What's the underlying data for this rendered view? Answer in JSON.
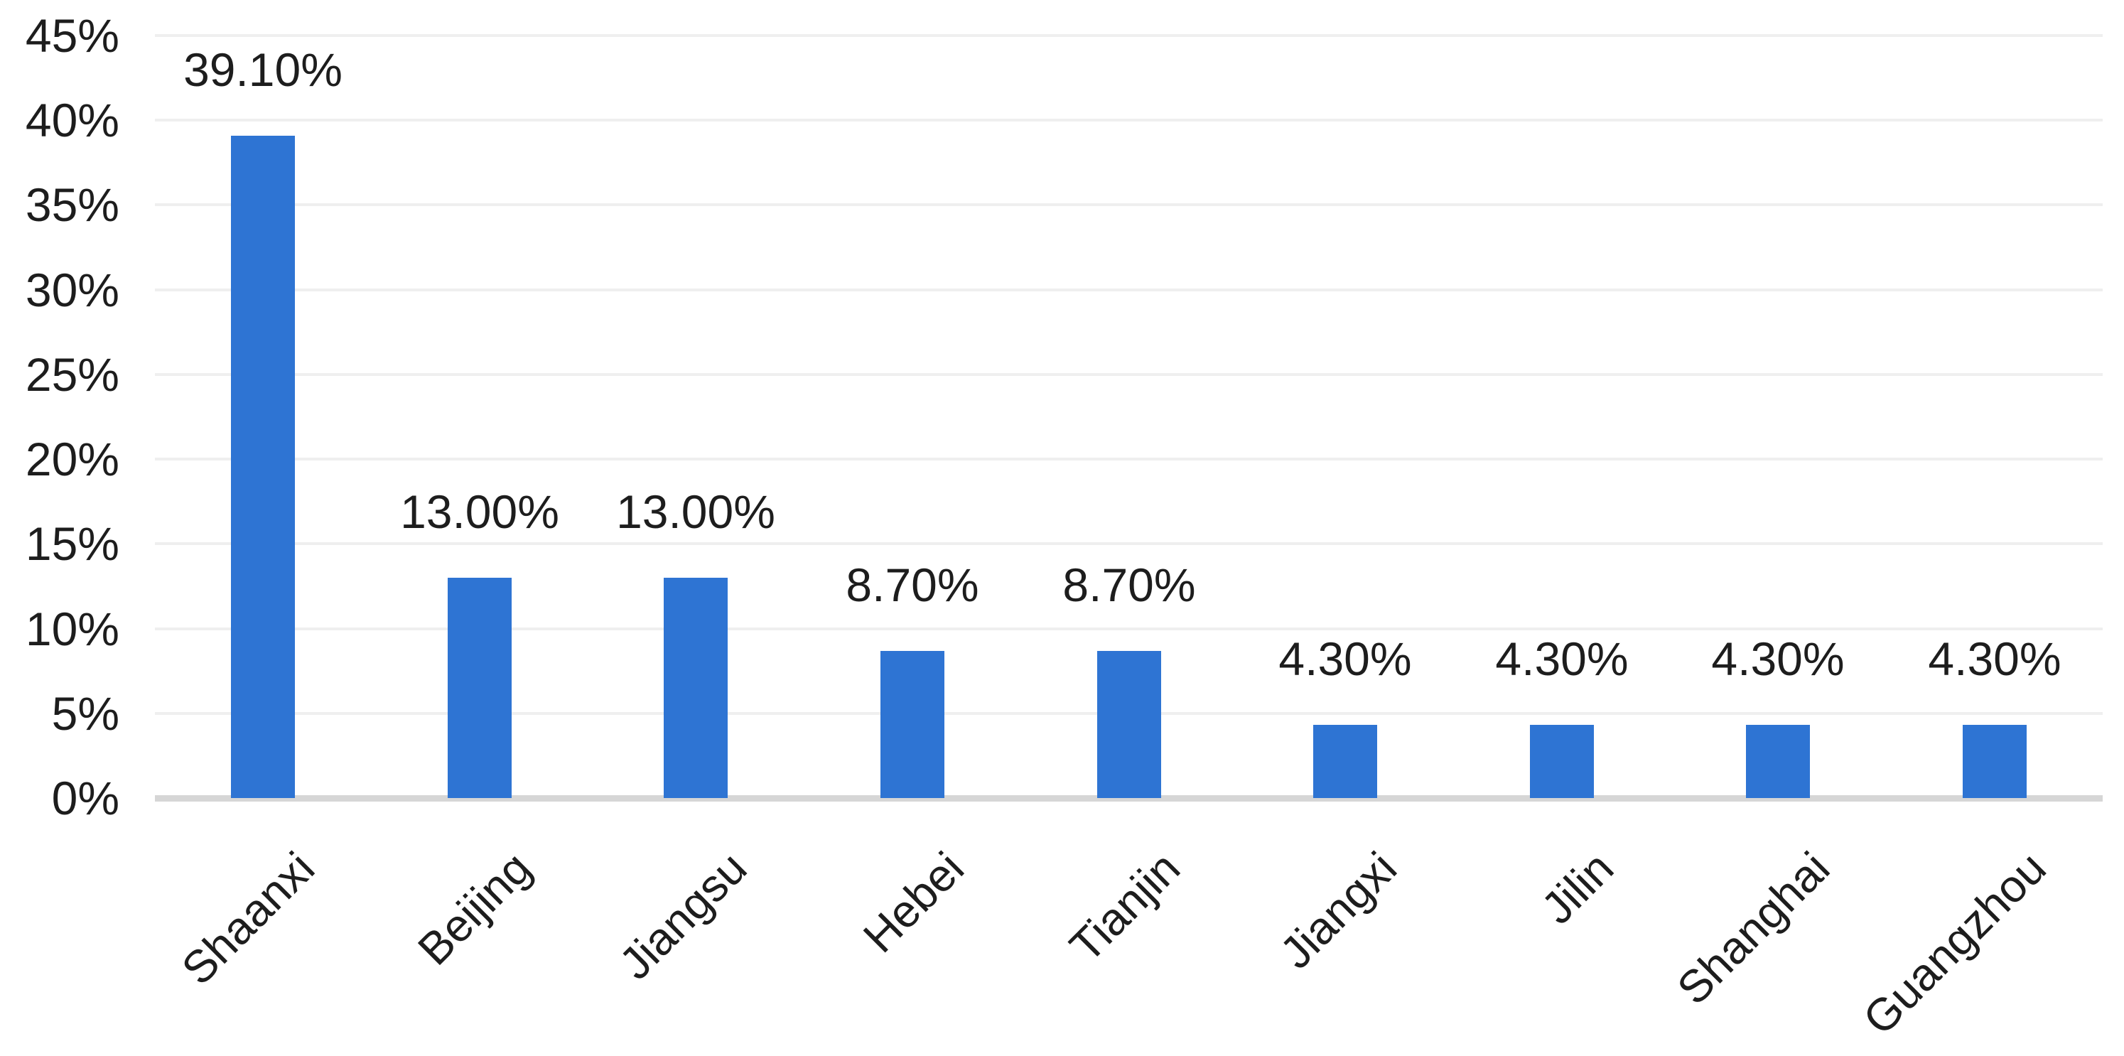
{
  "chart_data": {
    "type": "bar",
    "title": "",
    "xlabel": "",
    "ylabel": "",
    "categories": [
      "Shaanxi",
      "Beijing",
      "Jiangsu",
      "Hebei",
      "Tianjin",
      "Jiangxi",
      "Jilin",
      "Shanghai",
      "Guangzhou"
    ],
    "values": [
      39.1,
      13.0,
      13.0,
      8.7,
      8.7,
      4.3,
      4.3,
      4.3,
      4.3
    ],
    "value_labels": [
      "39.10%",
      "13.00%",
      "13.00%",
      "8.70%",
      "8.70%",
      "4.30%",
      "4.30%",
      "4.30%",
      "4.30%"
    ],
    "y_ticks": [
      "45%",
      "40%",
      "35%",
      "30%",
      "25%",
      "20%",
      "15%",
      "10%",
      "5%",
      "0%"
    ],
    "y_tick_values": [
      45,
      40,
      35,
      30,
      25,
      20,
      15,
      10,
      5,
      0
    ],
    "ylim": [
      0,
      45
    ],
    "grid": "horizontal",
    "legend": "none",
    "colors": {
      "bar": "#2e74d3",
      "gridline": "#efefef",
      "axis_line": "#d6d6d6",
      "text": "#1d1d1d"
    }
  }
}
